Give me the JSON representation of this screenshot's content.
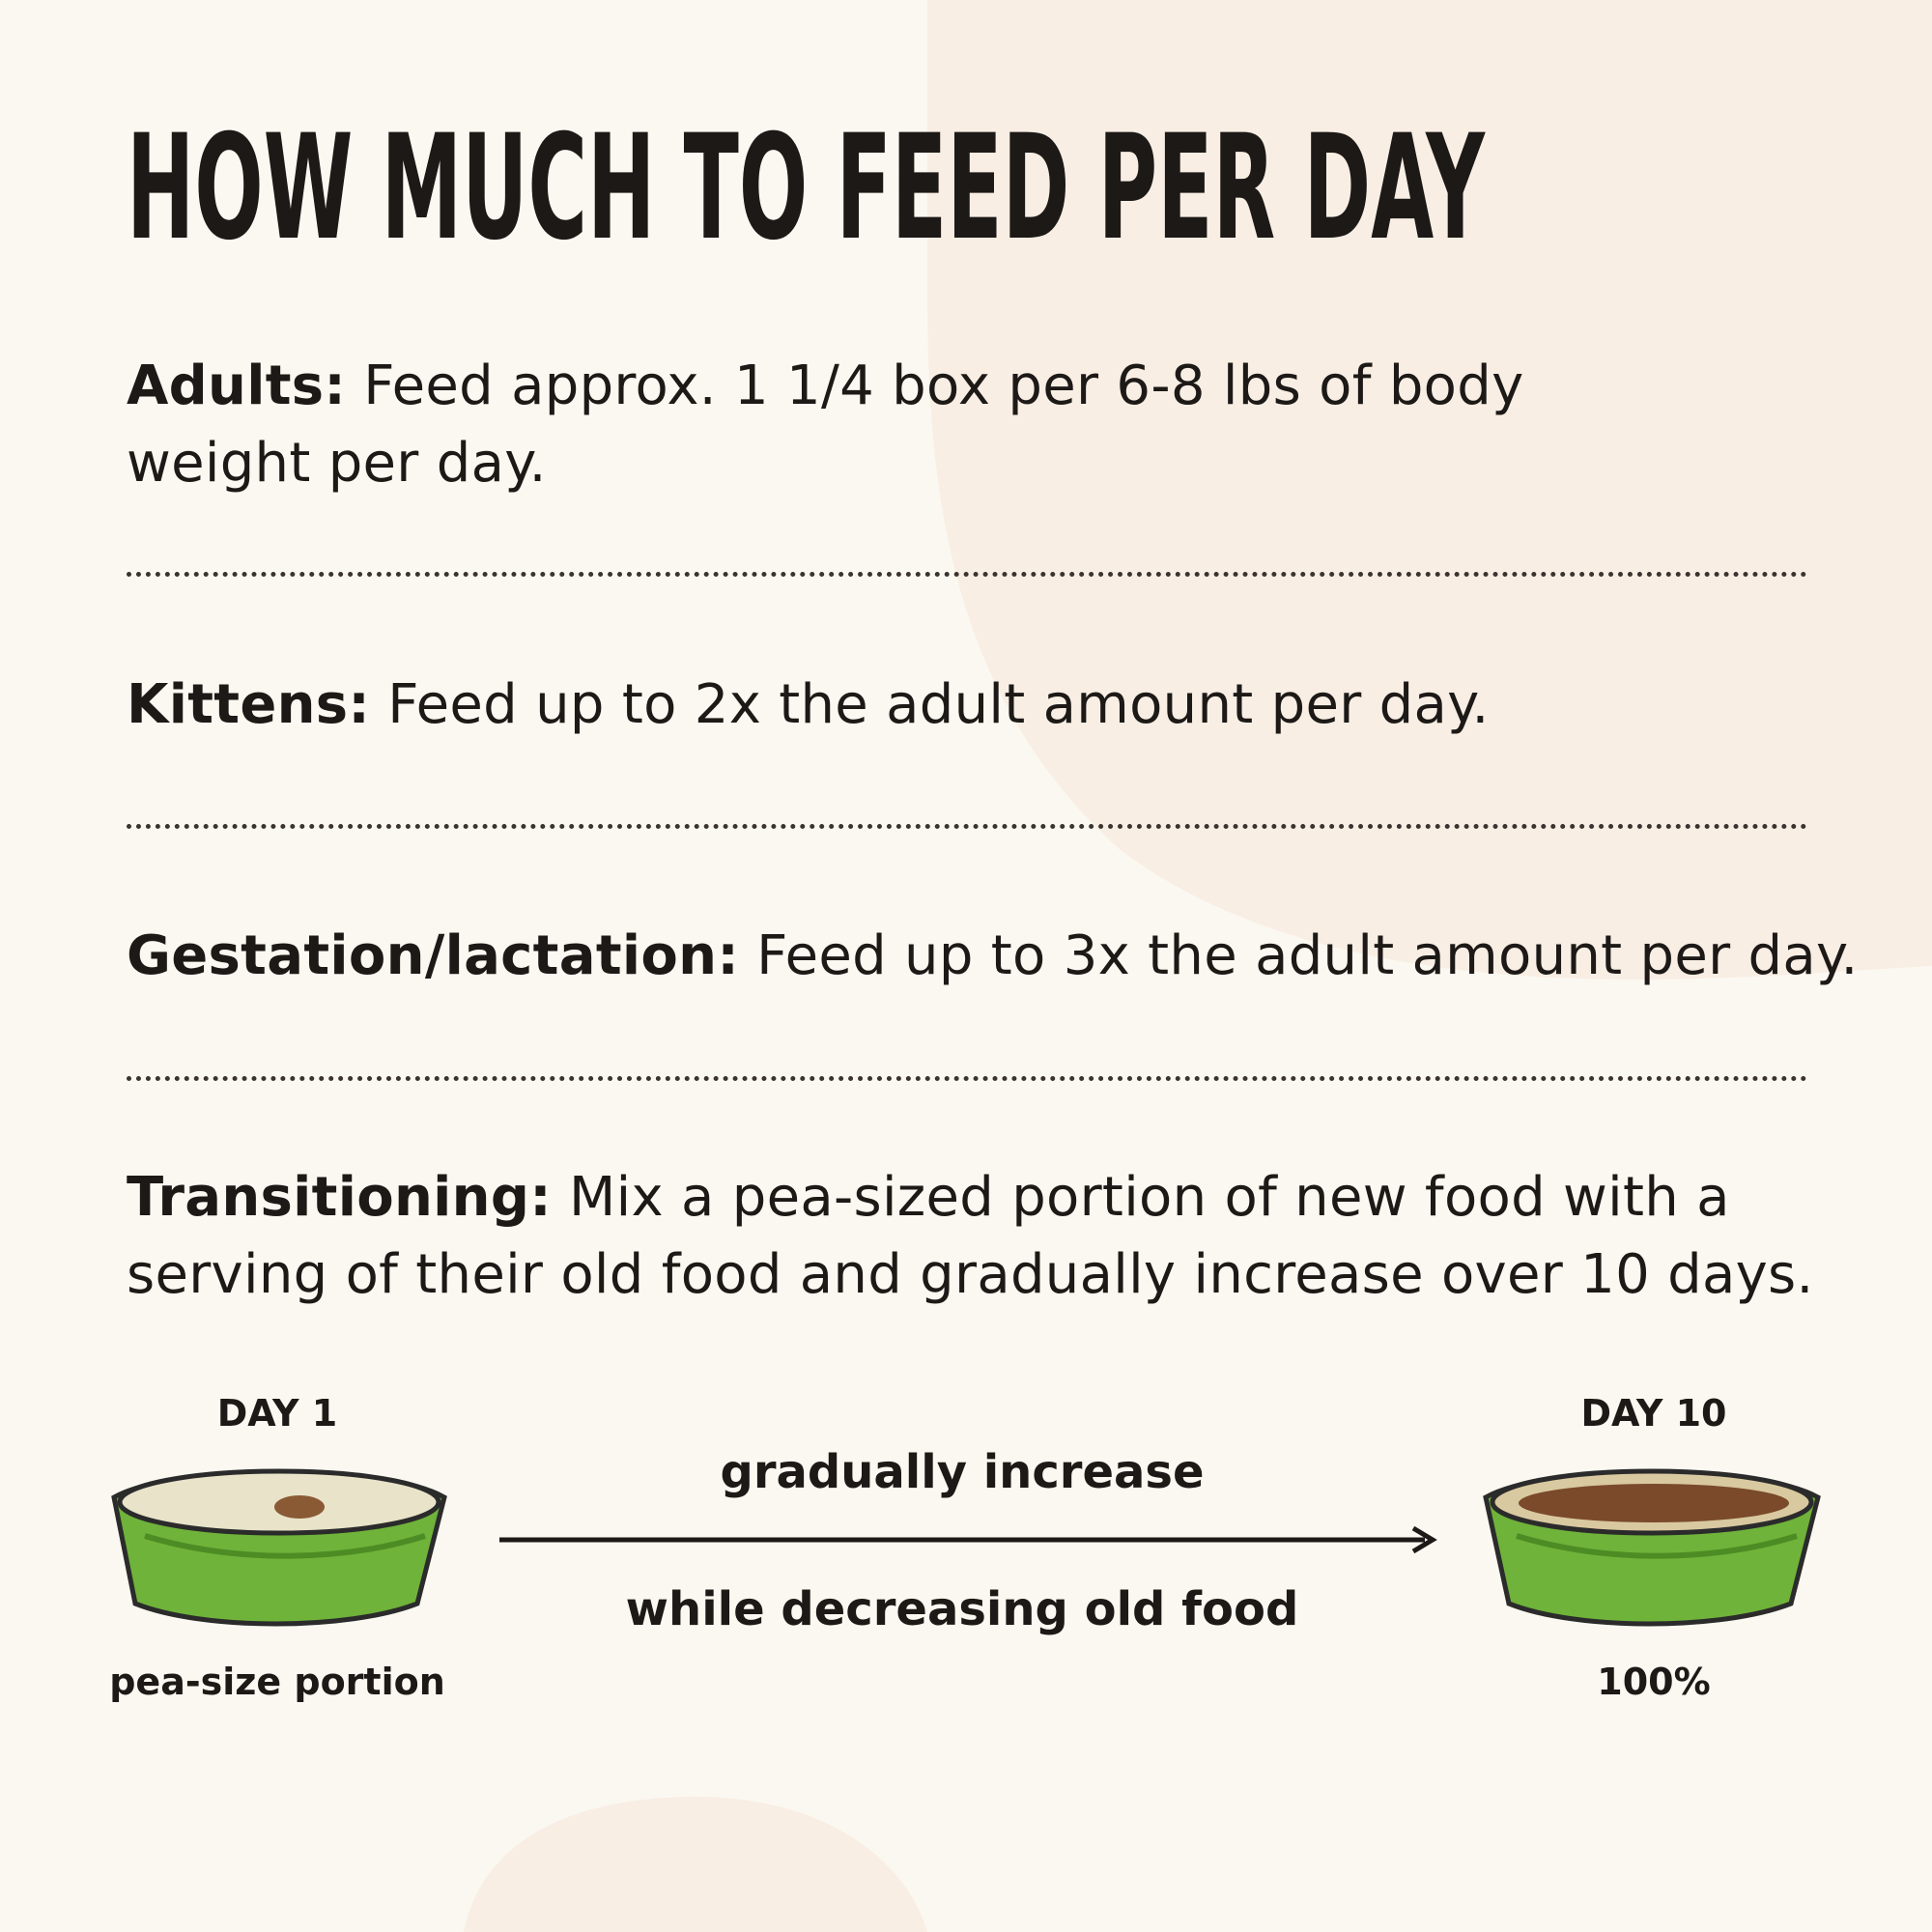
{
  "title": "HOW MUCH TO FEED PER DAY",
  "sections": [
    {
      "label": "Adults:",
      "text": "Feed approx. 1 1/4 box per 6-8 lbs of body weight per day."
    },
    {
      "label": "Kittens:",
      "text": "Feed up to 2x the adult amount per day."
    },
    {
      "label": "Gestation/lactation:",
      "text": "Feed up to 3x the adult amount per day."
    },
    {
      "label": "Transitioning:",
      "text": "Mix a pea-sized portion of new food with a serving of their old food and gradually increase over 10 days."
    }
  ],
  "transition": {
    "start_label": "DAY 1",
    "start_caption": "pea-size portion",
    "arrow_top": "gradually increase",
    "arrow_bottom": "while decreasing old food",
    "end_label": "DAY 10",
    "end_caption": "100%"
  }
}
